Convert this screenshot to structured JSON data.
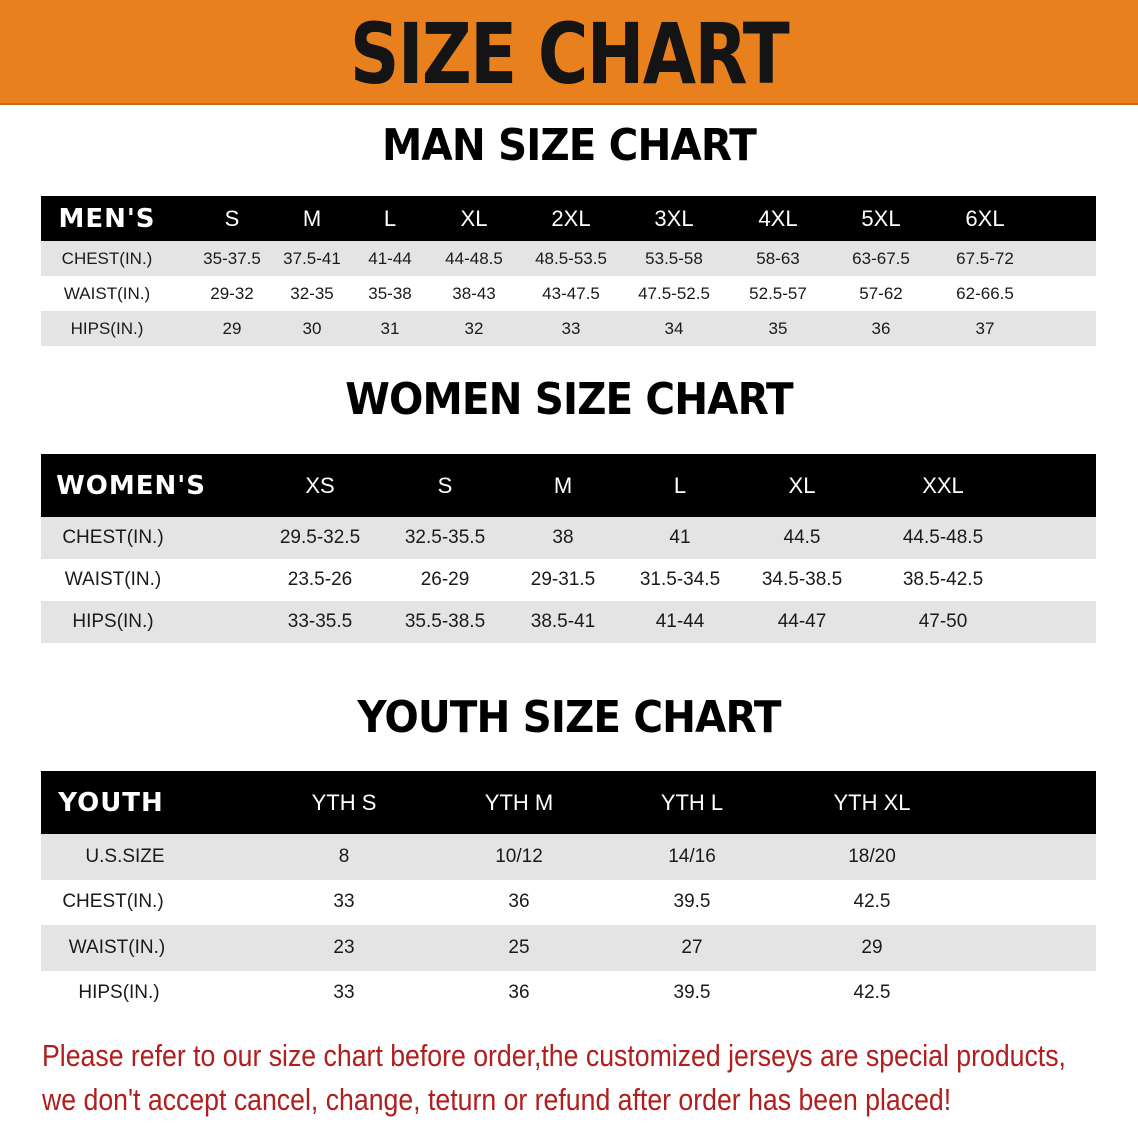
{
  "banner": {
    "title": "SIZE CHART",
    "color": "#e8801e"
  },
  "men": {
    "title": "MAN SIZE CHART",
    "header": [
      "MEN'S",
      "S",
      "M",
      "L",
      "XL",
      "2XL",
      "3XL",
      "4XL",
      "5XL",
      "6XL"
    ],
    "rows": [
      [
        "CHEST(IN.)",
        "35-37.5",
        "37.5-41",
        "41-44",
        "44-48.5",
        "48.5-53.5",
        "53.5-58",
        "58-63",
        "63-67.5",
        "67.5-72"
      ],
      [
        "WAIST(IN.)",
        "29-32",
        "32-35",
        "35-38",
        "38-43",
        "43-47.5",
        "47.5-52.5",
        "52.5-57",
        "57-62",
        "62-66.5"
      ],
      [
        "HIPS(IN.)",
        "29",
        "30",
        "31",
        "32",
        "33",
        "34",
        "35",
        "36",
        "37"
      ]
    ]
  },
  "women": {
    "title": "WOMEN SIZE CHART",
    "header": [
      "WOMEN'S",
      "XS",
      "S",
      "M",
      "L",
      "XL",
      "XXL"
    ],
    "rows": [
      [
        "CHEST(IN.)",
        "29.5-32.5",
        "32.5-35.5",
        "38",
        "41",
        "44.5",
        "44.5-48.5"
      ],
      [
        "WAIST(IN.)",
        "23.5-26",
        "26-29",
        "29-31.5",
        "31.5-34.5",
        "34.5-38.5",
        "38.5-42.5"
      ],
      [
        "HIPS(IN.)",
        "33-35.5",
        "35.5-38.5",
        "38.5-41",
        "41-44",
        "44-47",
        "47-50"
      ]
    ]
  },
  "youth": {
    "title": "YOUTH SIZE CHART",
    "header": [
      "YOUTH",
      "YTH S",
      "YTH M",
      "YTH L",
      "YTH XL"
    ],
    "rows": [
      [
        "U.S.SIZE",
        "8",
        "10/12",
        "14/16",
        "18/20"
      ],
      [
        "CHEST(IN.)",
        "33",
        "36",
        "39.5",
        "42.5"
      ],
      [
        "WAIST(IN.)",
        "23",
        "25",
        "27",
        "29"
      ],
      [
        "HIPS(IN.)",
        "33",
        "36",
        "39.5",
        "42.5"
      ]
    ]
  },
  "notice": {
    "line1": "Please refer to our size chart before order,the customized jerseys are special products,",
    "line2": "we don't accept cancel, change, teturn or refund after order has been placed!",
    "color": "#b01e1e"
  }
}
